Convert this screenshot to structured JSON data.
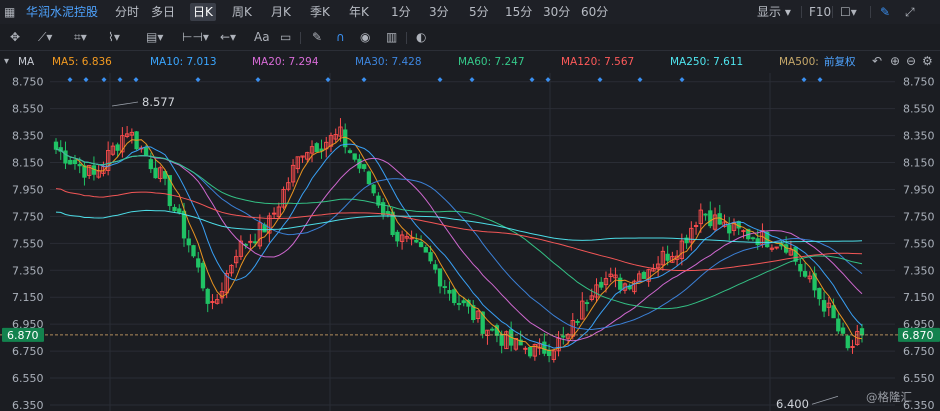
{
  "stock_name": "华润水泥控股",
  "period_tabs": [
    "分时",
    "多日",
    "日K",
    "周K",
    "月K",
    "季K",
    "年K",
    "1分",
    "3分",
    "5分",
    "15分",
    "30分",
    "60分"
  ],
  "active_tab": "日K",
  "toolbar_right": {
    "display": "显示",
    "f10": "F10"
  },
  "indicator": "MA",
  "ma_legend": [
    {
      "label": "MA5: 6.836",
      "color": "#f29a21"
    },
    {
      "label": "MA10: 7.013",
      "color": "#3aa6ff"
    },
    {
      "label": "MA20: 7.294",
      "color": "#d86cd8"
    },
    {
      "label": "MA30: 7.428",
      "color": "#3d86e0"
    },
    {
      "label": "MA60: 7.247",
      "color": "#35c98a"
    },
    {
      "label": "MA120: 7.567",
      "color": "#ff5a5a"
    },
    {
      "label": "MA250: 7.611",
      "color": "#4fe6f0"
    },
    {
      "label": "MA500: ",
      "color": "#c6a86a"
    }
  ],
  "adjust_label": "前复权",
  "price_axis": [
    "8.750",
    "8.550",
    "8.350",
    "8.150",
    "7.950",
    "7.750",
    "7.550",
    "7.350",
    "7.150",
    "6.950",
    "6.750",
    "6.550",
    "6.350"
  ],
  "current_price": "6.870",
  "high_marker": "8.577",
  "low_marker": "6.400",
  "watermark": "@格隆汇",
  "chart_data": {
    "type": "candlestick",
    "ylim": [
      6.32,
      8.8
    ],
    "current": 6.87,
    "high": 8.577,
    "low": 6.4,
    "grid": true,
    "key_points": [
      {
        "i": 0,
        "close": 8.25
      },
      {
        "i": 8,
        "close": 8.05
      },
      {
        "i": 15,
        "close": 8.4
      },
      {
        "i": 22,
        "close": 8.05
      },
      {
        "i": 28,
        "close": 7.55
      },
      {
        "i": 33,
        "close": 7.05
      },
      {
        "i": 38,
        "close": 7.5
      },
      {
        "i": 45,
        "close": 7.7
      },
      {
        "i": 52,
        "close": 8.25
      },
      {
        "i": 60,
        "close": 8.35
      },
      {
        "i": 66,
        "close": 8.0
      },
      {
        "i": 72,
        "close": 7.6
      },
      {
        "i": 78,
        "close": 7.45
      },
      {
        "i": 84,
        "close": 7.15
      },
      {
        "i": 90,
        "close": 6.95
      },
      {
        "i": 96,
        "close": 6.8
      },
      {
        "i": 102,
        "close": 6.75
      },
      {
        "i": 108,
        "close": 6.85
      },
      {
        "i": 114,
        "close": 7.3
      },
      {
        "i": 120,
        "close": 7.25
      },
      {
        "i": 126,
        "close": 7.4
      },
      {
        "i": 132,
        "close": 7.55
      },
      {
        "i": 136,
        "close": 7.8
      },
      {
        "i": 142,
        "close": 7.65
      },
      {
        "i": 148,
        "close": 7.6
      },
      {
        "i": 154,
        "close": 7.55
      },
      {
        "i": 158,
        "close": 7.3
      },
      {
        "i": 163,
        "close": 7.05
      },
      {
        "i": 167,
        "close": 6.75
      },
      {
        "i": 170,
        "close": 6.87
      }
    ]
  }
}
